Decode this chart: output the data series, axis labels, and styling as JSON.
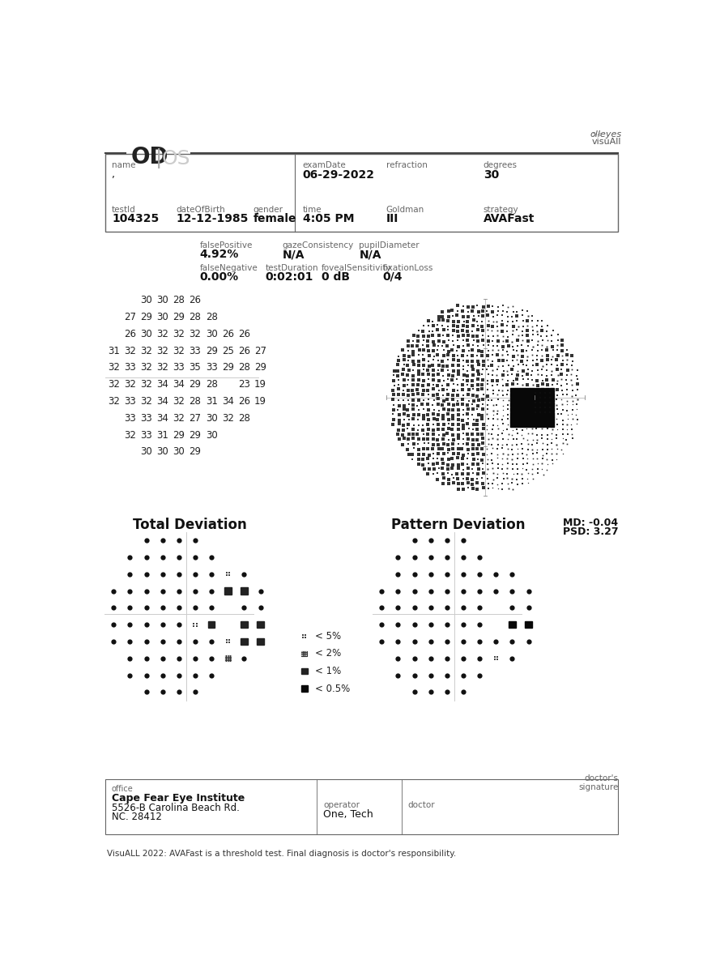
{
  "logo_text": [
    "olleyes",
    "visuAll"
  ],
  "eye_label_bold": "OD",
  "eye_label_light": "OS",
  "header_fields": {
    "name_label": "name",
    "name_value": ",",
    "examDate_label": "examDate",
    "examDate_value": "06-29-2022",
    "refraction_label": "refraction",
    "refraction_value": "",
    "degrees_label": "degrees",
    "degrees_value": "30",
    "testId_label": "testId",
    "testId_value": "104325",
    "dateOfBirth_label": "dateOfBirth",
    "dateOfBirth_value": "12-12-1985",
    "gender_label": "gender",
    "gender_value": "female",
    "time_label": "time",
    "time_value": "4:05 PM",
    "Goldman_label": "Goldman",
    "Goldman_value": "III",
    "strategy_label": "strategy",
    "strategy_value": "AVAFast"
  },
  "stats": {
    "falsePositive_label": "falsePositive",
    "falsePositive_value": "4.92%",
    "gazeConsistency_label": "gazeConsistency",
    "gazeConsistency_value": "N/A",
    "pupilDiameter_label": "pupilDiameter",
    "pupilDiameter_value": "N/A",
    "falseNegative_label": "falseNegative",
    "falseNegative_value": "0.00%",
    "testDuration_label": "testDuration",
    "testDuration_value": "0:02:01",
    "fovealSensitivity_label": "fovealSensitivity",
    "fovealSensitivity_value": "0 dB",
    "fixationLoss_label": "fixationLoss",
    "fixationLoss_value": "0/4"
  },
  "numeric_grid": [
    [
      null,
      null,
      30,
      30,
      28,
      26,
      null,
      null,
      null,
      null
    ],
    [
      null,
      27,
      29,
      30,
      29,
      28,
      28,
      null,
      null,
      null
    ],
    [
      null,
      26,
      30,
      32,
      32,
      32,
      30,
      26,
      26,
      null
    ],
    [
      31,
      32,
      32,
      32,
      32,
      33,
      29,
      25,
      26,
      27
    ],
    [
      32,
      33,
      32,
      32,
      33,
      35,
      33,
      29,
      28,
      29
    ],
    [
      32,
      32,
      32,
      34,
      34,
      29,
      28,
      null,
      23,
      19
    ],
    [
      32,
      33,
      32,
      34,
      32,
      28,
      31,
      34,
      26,
      19
    ],
    [
      null,
      33,
      33,
      34,
      32,
      27,
      30,
      32,
      28,
      null
    ],
    [
      null,
      32,
      33,
      31,
      29,
      29,
      30,
      null,
      null,
      null
    ],
    [
      null,
      null,
      30,
      30,
      30,
      29,
      null,
      null,
      null,
      null
    ]
  ],
  "md_value": "MD: -0.04",
  "psd_value": "PSD: 3.27",
  "total_dev_title": "Total Deviation",
  "pattern_dev_title": "Pattern Deviation",
  "total_deviation_grid": [
    [
      null,
      null,
      0,
      0,
      0,
      0,
      null,
      null,
      null,
      null
    ],
    [
      null,
      0,
      0,
      0,
      0,
      0,
      0,
      null,
      null,
      null
    ],
    [
      null,
      0,
      0,
      0,
      0,
      0,
      0,
      1,
      0,
      null
    ],
    [
      0,
      0,
      0,
      0,
      0,
      0,
      0,
      3,
      3,
      0
    ],
    [
      0,
      0,
      0,
      0,
      0,
      0,
      0,
      null,
      0,
      0
    ],
    [
      0,
      0,
      0,
      0,
      0,
      1,
      3,
      null,
      3,
      3
    ],
    [
      0,
      0,
      0,
      0,
      0,
      0,
      0,
      1,
      3,
      3
    ],
    [
      null,
      0,
      0,
      0,
      0,
      0,
      0,
      2,
      0,
      null
    ],
    [
      null,
      0,
      0,
      0,
      0,
      0,
      0,
      null,
      null,
      null
    ],
    [
      null,
      null,
      0,
      0,
      0,
      0,
      null,
      null,
      null,
      null
    ]
  ],
  "pattern_deviation_grid": [
    [
      null,
      null,
      0,
      0,
      0,
      0,
      null,
      null,
      null,
      null
    ],
    [
      null,
      0,
      0,
      0,
      0,
      0,
      0,
      null,
      null,
      null
    ],
    [
      null,
      0,
      0,
      0,
      0,
      0,
      0,
      0,
      0,
      null
    ],
    [
      0,
      0,
      0,
      0,
      0,
      0,
      0,
      0,
      0,
      0
    ],
    [
      0,
      0,
      0,
      0,
      0,
      0,
      0,
      null,
      0,
      0
    ],
    [
      0,
      0,
      0,
      0,
      0,
      0,
      0,
      null,
      4,
      4
    ],
    [
      0,
      0,
      0,
      0,
      0,
      0,
      0,
      0,
      0,
      0
    ],
    [
      null,
      0,
      0,
      0,
      0,
      0,
      0,
      1,
      0,
      null
    ],
    [
      null,
      0,
      0,
      0,
      0,
      0,
      0,
      null,
      null,
      null
    ],
    [
      null,
      null,
      0,
      0,
      0,
      0,
      null,
      null,
      null,
      null
    ]
  ],
  "legend": [
    {
      "symbol": 1,
      "label": "< 5%"
    },
    {
      "symbol": 2,
      "label": "< 2%"
    },
    {
      "symbol": 3,
      "label": "< 1%"
    },
    {
      "symbol": 4,
      "label": "< 0.5%"
    }
  ],
  "office_label": "office",
  "office_name": "Cape Fear Eye Institute",
  "office_address1": "5526-B Carolina Beach Rd.",
  "office_address2": "NC. 28412",
  "operator_label": "operator",
  "operator_value": "One, Tech",
  "doctor_label": "doctor",
  "doctor_value": "",
  "doctors_signature_label": "doctor's\nsignature",
  "footer_text": "VisuALL 2022: AVAFast is a threshold test. Final diagnosis is doctor's responsibility.",
  "bg_color": "#ffffff",
  "text_color": "#111111",
  "label_color": "#666666",
  "line_color": "#888888"
}
